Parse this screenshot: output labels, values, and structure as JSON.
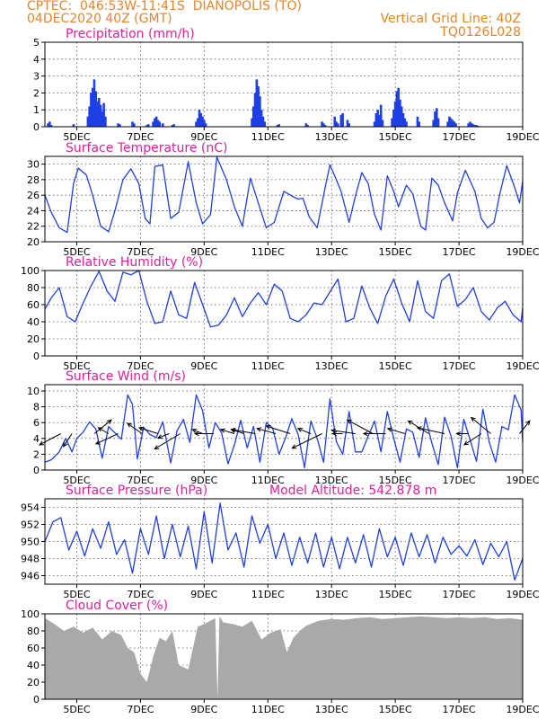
{
  "header": {
    "line1_left": "CPTEC:  046:53W-11:41S  DIANOPOLIS (TO)",
    "line2_left": "04DEC2020 40Z (GMT)",
    "line1_right": "Vertical Grid Line: 40Z",
    "line2_right": "TQ0126L028"
  },
  "colors": {
    "header": "#e8832a",
    "title": "#e0209a",
    "series": "#1f3fe6",
    "cloud": "#a9a9a9",
    "arrow": "#000000"
  },
  "x_axis": {
    "ticks": [
      {
        "day": 5,
        "label": "5DEC"
      },
      {
        "day": 7,
        "label": "7DEC"
      },
      {
        "day": 9,
        "label": "9DEC"
      },
      {
        "day": 11,
        "label": "11DEC"
      },
      {
        "day": 13,
        "label": "13DEC"
      },
      {
        "day": 15,
        "label": "15DEC"
      },
      {
        "day": 17,
        "label": "17DEC"
      },
      {
        "day": 19,
        "label": "19DEC"
      }
    ],
    "range_days": [
      4.0,
      19.0
    ]
  },
  "chart_data": [
    {
      "type": "bar",
      "title": "Precipitation (mm/h)",
      "ylim": [
        0,
        5
      ],
      "yticks": [
        0,
        1,
        2,
        3,
        4,
        5
      ],
      "grid": true,
      "x_days": [
        4.1,
        4.15,
        4.2,
        4.9,
        5.35,
        5.4,
        5.45,
        5.5,
        5.55,
        5.6,
        5.65,
        5.7,
        5.75,
        5.8,
        5.85,
        5.9,
        6.3,
        6.35,
        6.75,
        6.8,
        7.2,
        7.25,
        7.4,
        7.45,
        7.5,
        7.55,
        7.6,
        7.7,
        8.0,
        8.05,
        8.75,
        8.8,
        8.85,
        8.9,
        8.95,
        9.0,
        9.05,
        10.5,
        10.55,
        10.6,
        10.65,
        10.7,
        10.75,
        10.8,
        10.85,
        10.9,
        11.3,
        11.35,
        12.2,
        12.25,
        12.7,
        12.75,
        12.8,
        13.1,
        13.15,
        13.2,
        13.3,
        13.35,
        13.5,
        13.55,
        14.35,
        14.4,
        14.45,
        14.5,
        14.55,
        14.6,
        14.9,
        14.95,
        15.0,
        15.05,
        15.1,
        15.15,
        15.2,
        15.25,
        15.3,
        15.35,
        15.7,
        15.75,
        16.2,
        16.25,
        16.3,
        16.35,
        16.65,
        16.7,
        16.75,
        16.8,
        16.85,
        16.9,
        17.3,
        17.35,
        17.4,
        17.45,
        17.5,
        17.55,
        17.6
      ],
      "values": [
        0.2,
        0.3,
        0.1,
        0.15,
        0.6,
        1.2,
        2.0,
        2.3,
        2.8,
        2.1,
        1.5,
        1.7,
        1.3,
        0.9,
        1.4,
        0.6,
        0.2,
        0.15,
        0.3,
        0.2,
        0.1,
        0.15,
        0.3,
        0.5,
        0.6,
        0.4,
        0.3,
        0.2,
        0.1,
        0.15,
        0.3,
        0.5,
        1.0,
        0.8,
        0.6,
        0.4,
        0.2,
        0.5,
        1.2,
        2.0,
        2.8,
        2.4,
        1.8,
        1.0,
        0.6,
        0.3,
        0.1,
        0.15,
        0.2,
        0.1,
        0.3,
        0.2,
        0.1,
        0.6,
        0.3,
        0.2,
        0.7,
        0.8,
        0.4,
        0.2,
        0.3,
        0.8,
        1.0,
        0.7,
        1.3,
        0.4,
        0.5,
        1.0,
        1.5,
        2.1,
        2.3,
        1.6,
        1.2,
        0.8,
        0.5,
        0.3,
        0.6,
        0.3,
        0.4,
        0.9,
        1.1,
        0.5,
        0.3,
        0.6,
        0.5,
        0.4,
        0.3,
        0.2,
        0.2,
        0.3,
        0.2,
        0.15,
        0.1,
        0.1,
        0.05
      ]
    },
    {
      "type": "line",
      "title": "Surface Temperature (nC)",
      "ylim": [
        20,
        31
      ],
      "yticks": [
        20,
        22,
        24,
        26,
        28,
        30
      ],
      "grid": true,
      "x_days": [
        4.0,
        4.2,
        4.45,
        4.7,
        4.9,
        5.05,
        5.3,
        5.5,
        5.75,
        6.0,
        6.2,
        6.45,
        6.7,
        6.95,
        7.15,
        7.3,
        7.45,
        7.7,
        7.95,
        8.2,
        8.5,
        8.75,
        8.95,
        9.2,
        9.4,
        9.7,
        9.95,
        10.2,
        10.45,
        10.7,
        10.95,
        11.2,
        11.5,
        11.8,
        11.95,
        12.1,
        12.3,
        12.55,
        12.8,
        12.95,
        13.1,
        13.3,
        13.55,
        13.75,
        13.95,
        14.15,
        14.35,
        14.55,
        14.75,
        14.95,
        15.1,
        15.35,
        15.55,
        15.8,
        15.95,
        16.15,
        16.35,
        16.55,
        16.8,
        16.95,
        17.2,
        17.5,
        17.7,
        17.9,
        18.1,
        18.3,
        18.5,
        18.75,
        18.9,
        19.0
      ],
      "values": [
        26.0,
        23.8,
        21.8,
        21.2,
        27.5,
        29.5,
        28.6,
        26.0,
        22.0,
        21.3,
        24.0,
        28.0,
        29.4,
        27.5,
        23.0,
        22.3,
        29.7,
        29.9,
        23.0,
        23.8,
        30.3,
        25.0,
        22.3,
        23.5,
        30.9,
        28.0,
        24.5,
        22.0,
        28.2,
        25.0,
        21.8,
        22.5,
        26.5,
        25.8,
        25.5,
        25.6,
        23.2,
        21.8,
        27.0,
        29.9,
        28.5,
        26.5,
        22.5,
        25.9,
        28.9,
        27.5,
        23.5,
        21.5,
        28.5,
        26.5,
        24.5,
        27.3,
        26.2,
        22.0,
        21.5,
        28.2,
        27.3,
        25.0,
        22.7,
        26.3,
        29.2,
        26.5,
        23.0,
        21.8,
        22.5,
        26.5,
        29.8,
        27.0,
        25.0,
        27.8
      ]
    },
    {
      "type": "line",
      "title": "Relative Humidity (%)",
      "ylim": [
        0,
        100
      ],
      "yticks": [
        0,
        20,
        40,
        60,
        80,
        100
      ],
      "grid": true,
      "x_days": [
        4.0,
        4.2,
        4.45,
        4.7,
        4.95,
        5.2,
        5.45,
        5.7,
        5.95,
        6.2,
        6.45,
        6.7,
        6.95,
        7.2,
        7.45,
        7.7,
        7.95,
        8.2,
        8.45,
        8.7,
        8.95,
        9.2,
        9.45,
        9.7,
        9.95,
        10.2,
        10.45,
        10.7,
        10.95,
        11.2,
        11.45,
        11.7,
        11.95,
        12.2,
        12.45,
        12.7,
        12.95,
        13.2,
        13.45,
        13.7,
        13.95,
        14.2,
        14.45,
        14.7,
        14.95,
        15.2,
        15.45,
        15.7,
        15.95,
        16.2,
        16.45,
        16.7,
        16.95,
        17.2,
        17.45,
        17.7,
        17.95,
        18.2,
        18.45,
        18.7,
        18.95,
        19.0
      ],
      "values": [
        55,
        68,
        80,
        46,
        40,
        62,
        82,
        99,
        76,
        64,
        98,
        95,
        100,
        64,
        38,
        40,
        76,
        48,
        44,
        86,
        60,
        34,
        36,
        48,
        68,
        46,
        62,
        74,
        60,
        84,
        76,
        44,
        40,
        48,
        62,
        60,
        75,
        90,
        40,
        44,
        82,
        56,
        38,
        70,
        90,
        62,
        40,
        88,
        52,
        44,
        88,
        96,
        58,
        66,
        80,
        52,
        42,
        56,
        64,
        48,
        40,
        56
      ]
    },
    {
      "type": "line",
      "title": "Surface Wind (m/s)",
      "ylim": [
        0,
        10.8
      ],
      "yticks": [
        0,
        2,
        4,
        6,
        8,
        10
      ],
      "grid": true,
      "x_days": [
        4.0,
        4.2,
        4.45,
        4.65,
        4.85,
        5.0,
        5.2,
        5.4,
        5.6,
        5.8,
        6.0,
        6.2,
        6.4,
        6.6,
        6.75,
        6.9,
        7.1,
        7.3,
        7.5,
        7.7,
        7.95,
        8.15,
        8.35,
        8.55,
        8.75,
        8.95,
        9.15,
        9.35,
        9.55,
        9.75,
        9.95,
        10.15,
        10.35,
        10.55,
        10.75,
        10.95,
        11.15,
        11.35,
        11.55,
        11.75,
        11.95,
        12.15,
        12.35,
        12.55,
        12.75,
        12.95,
        13.15,
        13.35,
        13.55,
        13.75,
        13.95,
        14.15,
        14.35,
        14.55,
        14.75,
        14.95,
        15.15,
        15.35,
        15.55,
        15.75,
        15.95,
        16.15,
        16.35,
        16.55,
        16.75,
        16.95,
        17.15,
        17.35,
        17.55,
        17.75,
        17.95,
        18.15,
        18.35,
        18.55,
        18.75,
        18.95,
        19.0
      ],
      "values": [
        1.0,
        1.3,
        2.3,
        4.0,
        2.3,
        4.0,
        4.8,
        6.1,
        5.2,
        1.5,
        5.5,
        4.7,
        3.9,
        9.5,
        8.3,
        1.4,
        5.4,
        4.5,
        4.1,
        6.1,
        0.9,
        5.0,
        6.4,
        3.5,
        9.5,
        7.5,
        2.8,
        6.0,
        4.7,
        0.8,
        3.2,
        6.3,
        2.8,
        5.5,
        1.0,
        6.0,
        5.3,
        2.0,
        4.0,
        6.5,
        4.5,
        0.3,
        6.2,
        4.0,
        1.0,
        9.0,
        3.6,
        2.0,
        7.4,
        2.3,
        2.3,
        4.3,
        6.2,
        2.3,
        7.4,
        4.0,
        1.0,
        5.2,
        4.8,
        1.6,
        6.6,
        3.4,
        0.7,
        6.7,
        4.3,
        0.3,
        6.4,
        3.8,
        1.1,
        7.7,
        3.5,
        1.0,
        5.5,
        5.1,
        9.5,
        7.6,
        3.5
      ],
      "wind_vectors": [
        {
          "day": 4.5,
          "u": -2.5,
          "v": -1.3
        },
        {
          "day": 4.85,
          "u": -1.0,
          "v": -1.5
        },
        {
          "day": 5.55,
          "u": 2.0,
          "v": 1.6
        },
        {
          "day": 6.0,
          "u": -1.2,
          "v": 0.7
        },
        {
          "day": 6.3,
          "u": -2.6,
          "v": -1.2
        },
        {
          "day": 7.05,
          "u": -1.7,
          "v": 1.2
        },
        {
          "day": 7.55,
          "u": -2.2,
          "v": 0.7
        },
        {
          "day": 7.9,
          "u": -1.3,
          "v": -0.5
        },
        {
          "day": 8.25,
          "u": -3.0,
          "v": -1.8
        },
        {
          "day": 8.95,
          "u": -1.2,
          "v": 0.5
        },
        {
          "day": 9.3,
          "u": -2.2,
          "v": 0.0
        },
        {
          "day": 9.95,
          "u": -1.6,
          "v": 0.5
        },
        {
          "day": 10.25,
          "u": -1.5,
          "v": 0.5
        },
        {
          "day": 10.6,
          "u": -2.8,
          "v": 0.5
        },
        {
          "day": 11.25,
          "u": -2.2,
          "v": 0.6
        },
        {
          "day": 11.7,
          "u": -2.8,
          "v": 0.9
        },
        {
          "day": 12.35,
          "u": -1.5,
          "v": 0.6
        },
        {
          "day": 12.7,
          "u": -3.5,
          "v": -1.7
        },
        {
          "day": 13.35,
          "u": -1.2,
          "v": 0.0
        },
        {
          "day": 13.75,
          "u": -2.8,
          "v": 0.4
        },
        {
          "day": 14.3,
          "u": -3.0,
          "v": 1.6
        },
        {
          "day": 14.7,
          "u": -2.6,
          "v": 0.0
        },
        {
          "day": 15.3,
          "u": -2.0,
          "v": 0.6
        },
        {
          "day": 16.05,
          "u": -2.4,
          "v": 1.5
        },
        {
          "day": 16.55,
          "u": -3.2,
          "v": 0.7
        },
        {
          "day": 17.3,
          "u": -1.4,
          "v": 0.0
        },
        {
          "day": 17.7,
          "u": -2.0,
          "v": -1.3
        },
        {
          "day": 18.0,
          "u": -2.3,
          "v": 1.9
        },
        {
          "day": 18.9,
          "u": 1.2,
          "v": 1.5
        }
      ]
    },
    {
      "type": "line",
      "title": "Surface Pressure (hPa)",
      "annotation": "Model Altitude: 542.878 m",
      "ylim": [
        945.0,
        955.0
      ],
      "yticks": [
        946,
        948,
        950,
        952,
        954
      ],
      "grid": true,
      "x_days": [
        4.0,
        4.25,
        4.5,
        4.75,
        5.0,
        5.25,
        5.5,
        5.75,
        6.0,
        6.25,
        6.5,
        6.75,
        7.0,
        7.25,
        7.5,
        7.75,
        8.0,
        8.25,
        8.5,
        8.75,
        9.0,
        9.25,
        9.5,
        9.75,
        10.0,
        10.25,
        10.5,
        10.75,
        11.0,
        11.25,
        11.5,
        11.75,
        12.0,
        12.25,
        12.5,
        12.75,
        13.0,
        13.25,
        13.5,
        13.75,
        14.0,
        14.25,
        14.5,
        14.75,
        15.0,
        15.25,
        15.5,
        15.75,
        16.0,
        16.25,
        16.5,
        16.75,
        17.0,
        17.25,
        17.5,
        17.75,
        18.0,
        18.25,
        18.5,
        18.75,
        19.0
      ],
      "values": [
        950.0,
        952.3,
        952.8,
        949.0,
        951.2,
        948.3,
        951.5,
        949.2,
        952.3,
        948.5,
        950.2,
        946.3,
        951.5,
        948.5,
        953.0,
        948.0,
        952.0,
        948.2,
        951.8,
        946.8,
        953.5,
        947.5,
        954.5,
        949.0,
        951.0,
        947.0,
        953.0,
        949.8,
        952.0,
        948.0,
        951.0,
        947.2,
        950.5,
        947.5,
        951.0,
        947.0,
        950.5,
        946.8,
        950.5,
        947.5,
        950.8,
        947.0,
        951.5,
        948.2,
        950.5,
        947.2,
        951.0,
        948.2,
        950.8,
        947.5,
        950.5,
        948.5,
        949.5,
        948.3,
        950.2,
        947.3,
        949.8,
        948.2,
        950.0,
        945.5,
        948.0
      ]
    },
    {
      "type": "area",
      "title": "Cloud Cover (%)",
      "ylim": [
        0,
        100
      ],
      "yticks": [
        0,
        20,
        40,
        60,
        80,
        100
      ],
      "grid": true,
      "x_days": [
        4.0,
        4.3,
        4.6,
        4.9,
        5.2,
        5.5,
        5.8,
        6.1,
        6.4,
        6.6,
        6.8,
        7.0,
        7.2,
        7.4,
        7.6,
        7.8,
        8.0,
        8.2,
        8.5,
        8.8,
        9.0,
        9.2,
        9.35,
        9.42,
        9.48,
        9.6,
        9.9,
        10.2,
        10.5,
        10.8,
        11.1,
        11.4,
        11.6,
        11.8,
        12.0,
        12.2,
        12.6,
        13.0,
        13.4,
        13.8,
        14.2,
        14.6,
        15.0,
        15.4,
        15.8,
        16.2,
        16.6,
        17.0,
        17.4,
        17.8,
        18.2,
        18.6,
        19.0
      ],
      "values": [
        95,
        88,
        80,
        85,
        78,
        84,
        70,
        80,
        75,
        60,
        55,
        30,
        20,
        50,
        72,
        68,
        80,
        40,
        35,
        85,
        88,
        92,
        95,
        0,
        97,
        90,
        88,
        85,
        92,
        70,
        78,
        82,
        55,
        72,
        80,
        86,
        92,
        94,
        93,
        95,
        96,
        94,
        95,
        96,
        97,
        96,
        95,
        96,
        95,
        96,
        94,
        95,
        93
      ]
    }
  ]
}
